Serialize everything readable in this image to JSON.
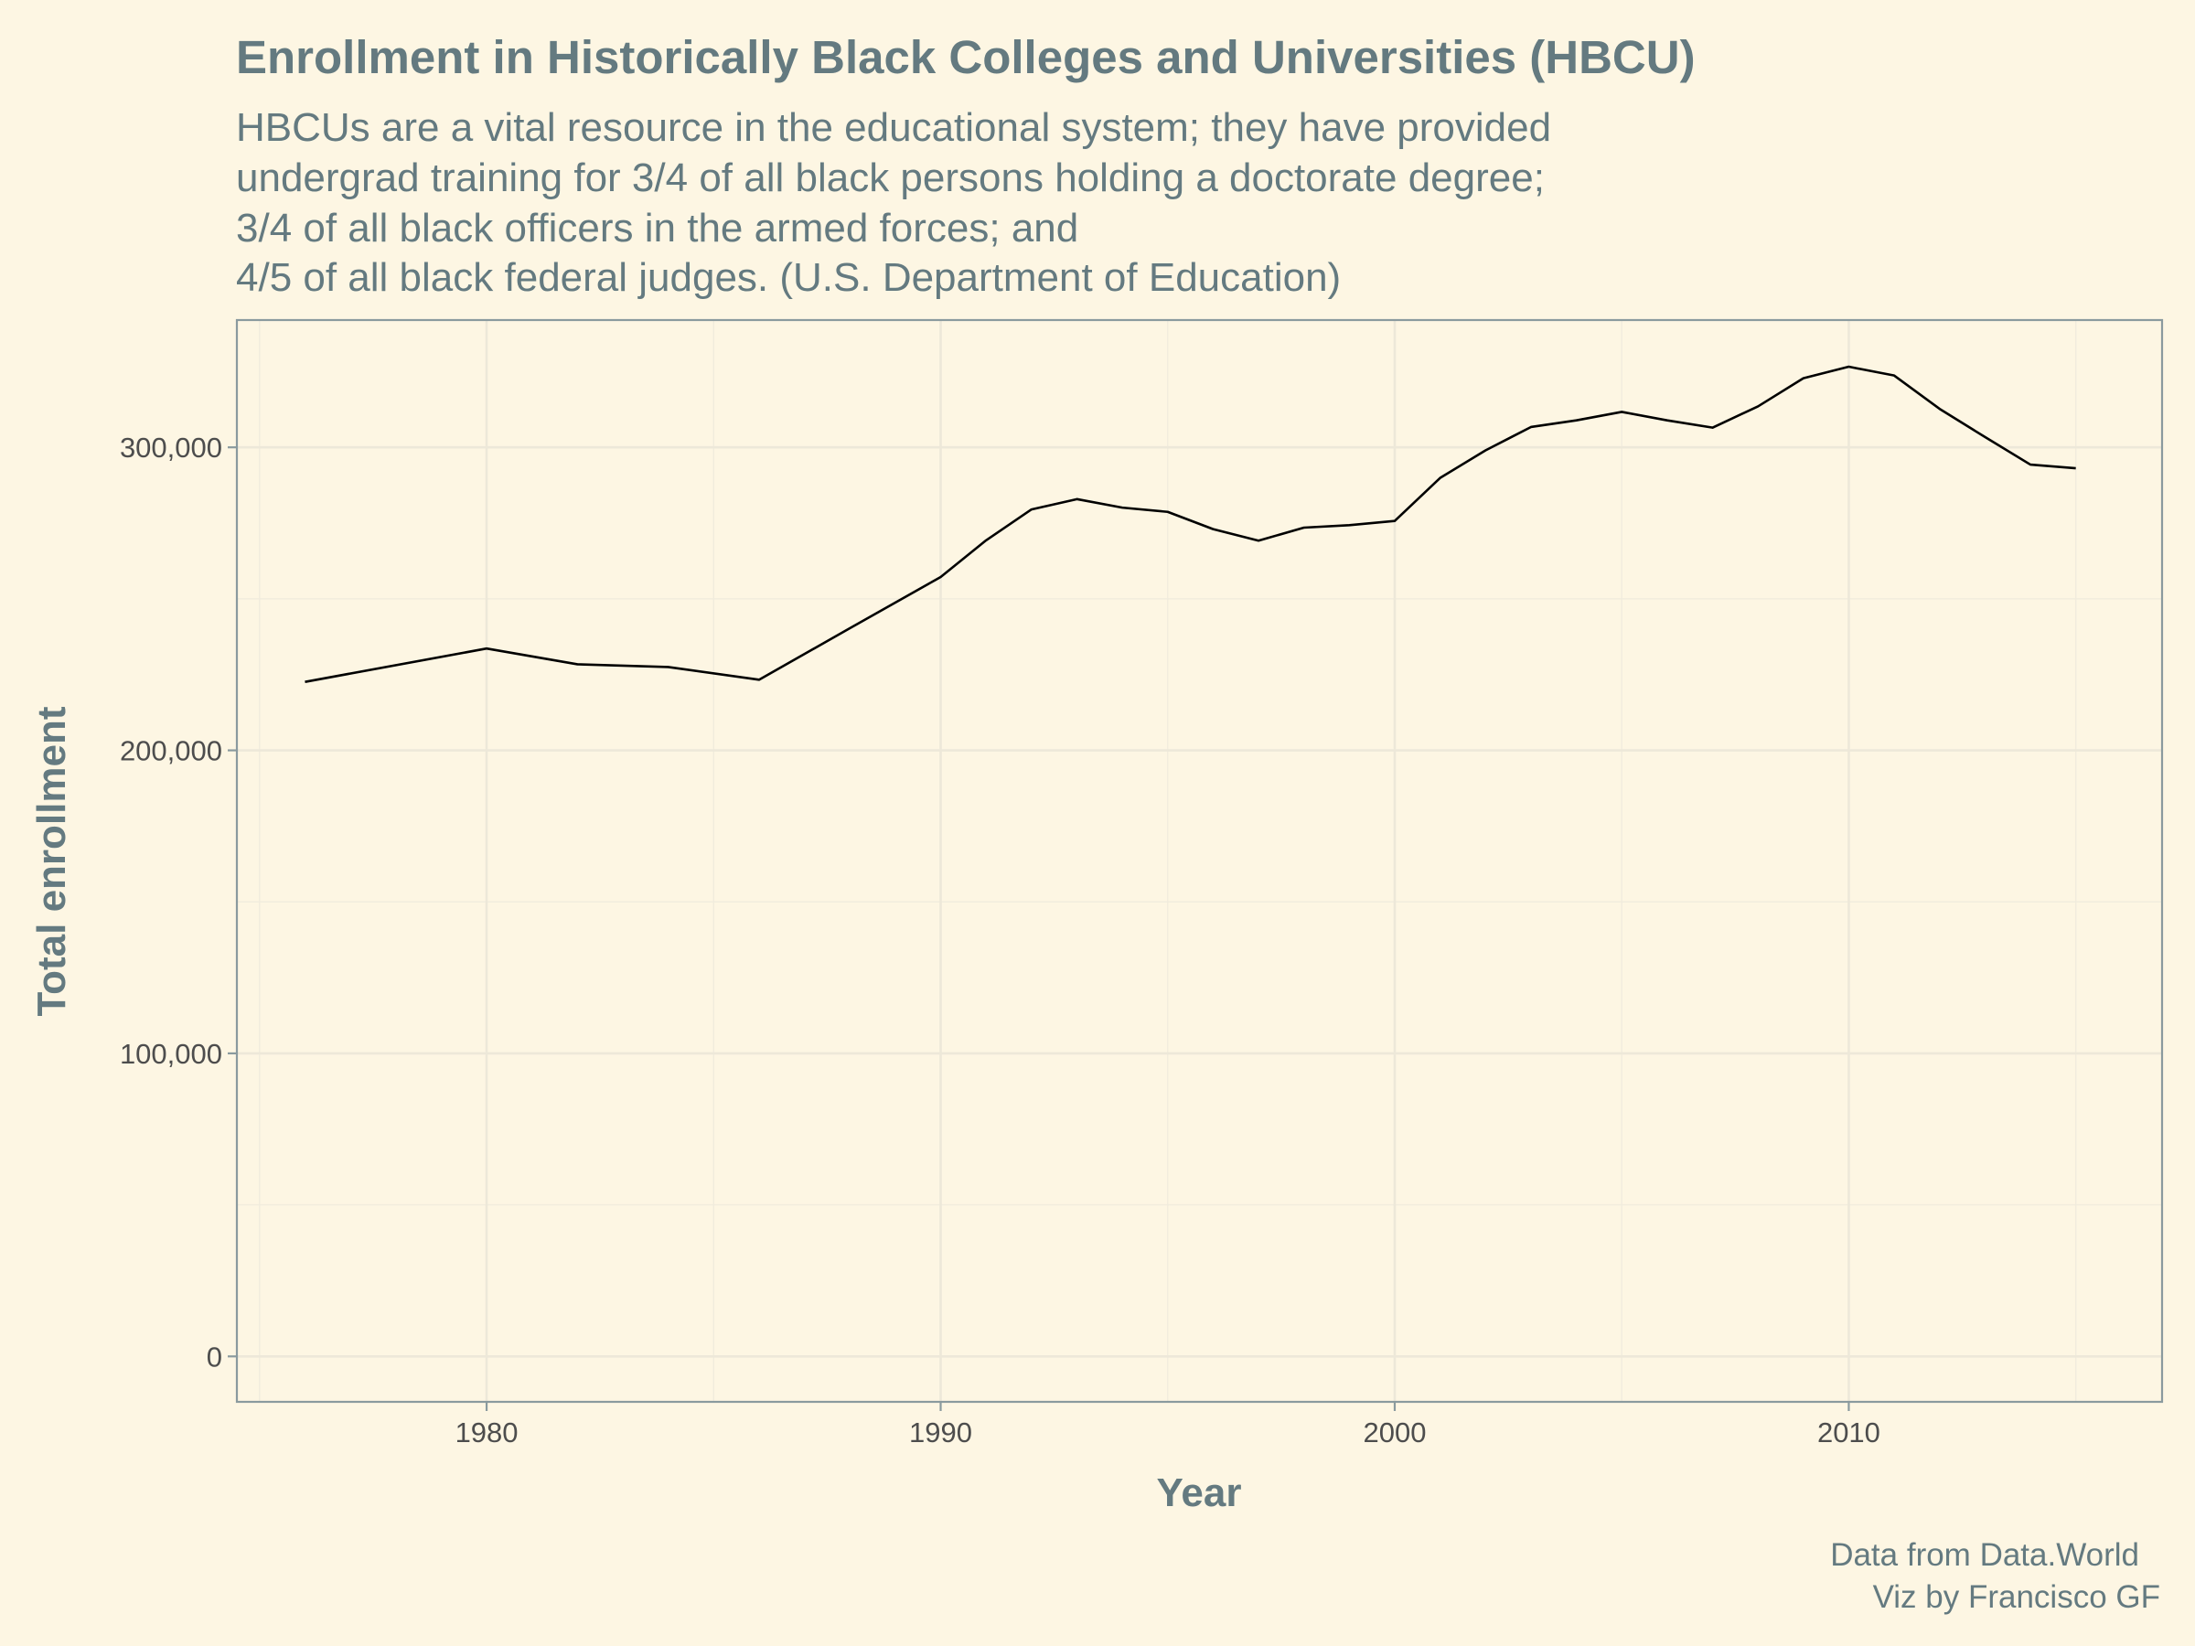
{
  "chart_data": {
    "type": "line",
    "title": "Enrollment in Historically Black Colleges and Universities (HBCU)",
    "subtitle": [
      "HBCUs are a vital resource in the educational system; they have provided",
      "undergrad training for 3/4 of all black persons holding a doctorate degree;",
      "3/4 of all black officers in the armed forces; and",
      "4/5 of all black federal judges. (U.S. Department of Education)"
    ],
    "xlabel": "Year",
    "ylabel": "Total enrollment",
    "caption": [
      "Data from Data.World",
      "Viz by Francisco GF"
    ],
    "xlim": [
      1974.5,
      2016.9
    ],
    "ylim": [
      -15000,
      342000
    ],
    "x_major_ticks": [
      1980,
      1990,
      2000,
      2010
    ],
    "x_minor_ticks": [
      1975,
      1985,
      1995,
      2005,
      2015
    ],
    "y_major_ticks": [
      0,
      100000,
      200000,
      300000
    ],
    "y_minor_ticks": [
      50000,
      150000,
      250000
    ],
    "x_tick_labels": [
      "1980",
      "1990",
      "2000",
      "2010"
    ],
    "y_tick_labels": [
      "0",
      "100,000",
      "200,000",
      "300,000"
    ],
    "grid": true,
    "legend": "none",
    "series": [
      {
        "color": "#000000",
        "points": [
          [
            1976,
            222600
          ],
          [
            1980,
            233600
          ],
          [
            1982,
            228400
          ],
          [
            1984,
            227500
          ],
          [
            1986,
            223300
          ],
          [
            1988,
            240300
          ],
          [
            1990,
            257200
          ],
          [
            1991,
            269300
          ],
          [
            1992,
            279500
          ],
          [
            1993,
            282900
          ],
          [
            1994,
            280100
          ],
          [
            1995,
            278700
          ],
          [
            1996,
            273000
          ],
          [
            1997,
            269200
          ],
          [
            1998,
            273500
          ],
          [
            1999,
            274300
          ],
          [
            2000,
            275700
          ],
          [
            2001,
            289900
          ],
          [
            2002,
            299000
          ],
          [
            2003,
            306700
          ],
          [
            2004,
            308900
          ],
          [
            2005,
            311700
          ],
          [
            2006,
            308900
          ],
          [
            2007,
            306500
          ],
          [
            2008,
            313500
          ],
          [
            2009,
            322800
          ],
          [
            2010,
            326600
          ],
          [
            2011,
            323700
          ],
          [
            2012,
            312700
          ],
          [
            2013,
            303400
          ],
          [
            2014,
            294300
          ],
          [
            2015,
            293100
          ]
        ]
      }
    ]
  }
}
